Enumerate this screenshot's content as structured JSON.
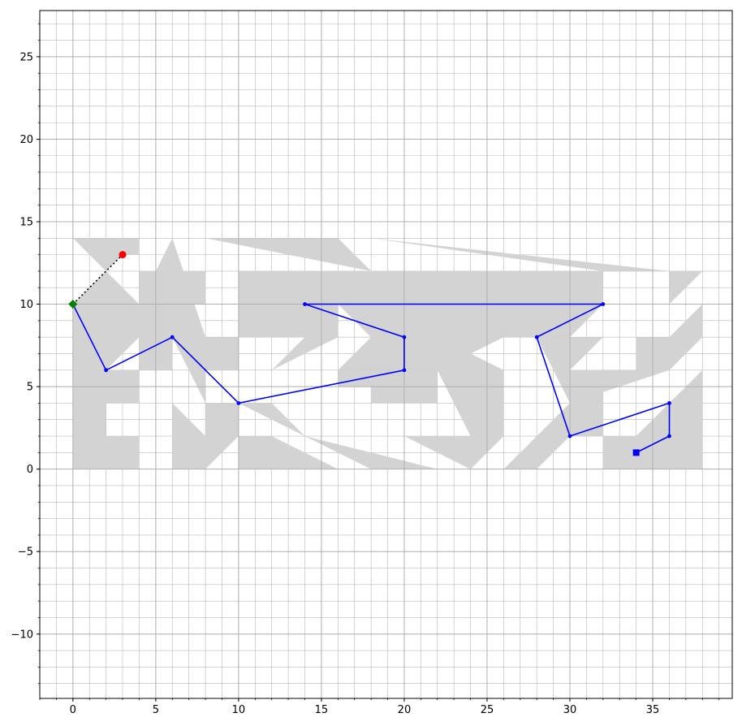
{
  "chart_data": {
    "type": "line",
    "title": "",
    "xlabel": "",
    "ylabel": "",
    "xlim": [
      -2,
      39.8
    ],
    "ylim": [
      -13.9,
      27.8
    ],
    "x_ticks": [
      0,
      5,
      10,
      15,
      20,
      25,
      30,
      35
    ],
    "y_ticks": [
      -10,
      -5,
      0,
      5,
      10,
      15,
      20,
      25
    ],
    "grid": {
      "major": true,
      "minor": true,
      "minor_step": 1
    },
    "obstacles": [
      [
        [
          0,
          0
        ],
        [
          4,
          0
        ],
        [
          4,
          2
        ],
        [
          2,
          2
        ],
        [
          2,
          4
        ],
        [
          4,
          4
        ],
        [
          4,
          6
        ],
        [
          2,
          6
        ],
        [
          4,
          8
        ],
        [
          6,
          14
        ],
        [
          4,
          10
        ],
        [
          2,
          12
        ],
        [
          0,
          10
        ]
      ],
      [
        [
          0,
          14
        ],
        [
          4,
          14
        ],
        [
          4,
          13
        ],
        [
          3,
          13
        ],
        [
          2,
          12
        ],
        [
          4,
          10
        ]
      ],
      [
        [
          6,
          14
        ],
        [
          8,
          8
        ],
        [
          10,
          8
        ],
        [
          10,
          6
        ],
        [
          8,
          6
        ],
        [
          8,
          4
        ],
        [
          6,
          8
        ],
        [
          4,
          8
        ]
      ],
      [
        [
          4,
          10
        ],
        [
          4,
          12
        ],
        [
          8,
          12
        ],
        [
          8,
          10
        ],
        [
          6,
          10
        ],
        [
          6,
          6
        ],
        [
          4,
          6
        ]
      ],
      [
        [
          6,
          4
        ],
        [
          8,
          2
        ],
        [
          8,
          0
        ],
        [
          6,
          0
        ]
      ],
      [
        [
          8,
          0
        ],
        [
          10,
          2
        ],
        [
          10,
          4
        ],
        [
          8,
          4
        ]
      ],
      [
        [
          10,
          0
        ],
        [
          16,
          0
        ],
        [
          12,
          2
        ],
        [
          10,
          2
        ]
      ],
      [
        [
          10,
          4
        ],
        [
          18,
          0
        ],
        [
          22,
          0
        ],
        [
          14,
          2
        ],
        [
          12,
          4
        ]
      ],
      [
        [
          8,
          14
        ],
        [
          16,
          14
        ],
        [
          18,
          12
        ],
        [
          10,
          12
        ],
        [
          10,
          10
        ],
        [
          12,
          10
        ],
        [
          12,
          8
        ],
        [
          14,
          8
        ],
        [
          12,
          6
        ],
        [
          16,
          8
        ],
        [
          16,
          10
        ],
        [
          18,
          12
        ]
      ],
      [
        [
          18,
          14
        ],
        [
          36,
          12
        ],
        [
          38,
          12
        ],
        [
          36,
          10
        ],
        [
          36,
          12
        ],
        [
          32,
          12
        ]
      ],
      [
        [
          10,
          12
        ],
        [
          32,
          12
        ],
        [
          32,
          10
        ],
        [
          30,
          8
        ],
        [
          26,
          8
        ],
        [
          22,
          6
        ],
        [
          16,
          6
        ],
        [
          18,
          8
        ],
        [
          16,
          10
        ],
        [
          14,
          10
        ],
        [
          12,
          8
        ],
        [
          10,
          8
        ]
      ],
      [
        [
          16,
          6
        ],
        [
          22,
          6
        ],
        [
          22,
          4
        ],
        [
          18,
          4
        ],
        [
          18,
          5
        ],
        [
          16,
          5
        ]
      ],
      [
        [
          20,
          2
        ],
        [
          24,
          0
        ],
        [
          26,
          2
        ],
        [
          26,
          6
        ],
        [
          22,
          8
        ],
        [
          18,
          8
        ],
        [
          22,
          6
        ],
        [
          24,
          2
        ]
      ],
      [
        [
          26,
          0
        ],
        [
          30,
          4
        ],
        [
          32,
          6
        ],
        [
          32,
          2
        ],
        [
          30,
          2
        ],
        [
          28,
          0
        ]
      ],
      [
        [
          30,
          4
        ],
        [
          36,
          6
        ],
        [
          38,
          8
        ],
        [
          38,
          10
        ],
        [
          36,
          8
        ],
        [
          34,
          8
        ],
        [
          34,
          6
        ],
        [
          30,
          6
        ]
      ],
      [
        [
          28,
          8
        ],
        [
          32,
          8
        ],
        [
          30,
          6
        ],
        [
          32,
          6
        ],
        [
          32,
          4
        ],
        [
          30,
          4
        ]
      ],
      [
        [
          32,
          0
        ],
        [
          38,
          0
        ],
        [
          38,
          6
        ],
        [
          34,
          2
        ],
        [
          32,
          2
        ]
      ],
      [
        [
          30,
          2
        ],
        [
          32,
          4
        ],
        [
          32,
          2
        ]
      ]
    ],
    "path": {
      "x": [
        0,
        2,
        6,
        10,
        20,
        20,
        14,
        32,
        28,
        30,
        36,
        36,
        34
      ],
      "y": [
        10,
        6,
        8,
        4,
        6,
        8,
        10,
        10,
        8,
        2,
        4,
        2,
        1
      ]
    },
    "start": {
      "x": 0,
      "y": 10
    },
    "end": {
      "x": 34,
      "y": 1
    },
    "goal": {
      "x": 3,
      "y": 13
    },
    "connector": {
      "x": [
        0,
        3
      ],
      "y": [
        10,
        13
      ]
    },
    "colors": {
      "path": "#0000ff",
      "obstacle": "#d3d3d3",
      "start": "#008000",
      "end": "#0000ff",
      "goal": "#ff0000",
      "connector": "#000000",
      "grid": "#b0b0b0"
    }
  }
}
